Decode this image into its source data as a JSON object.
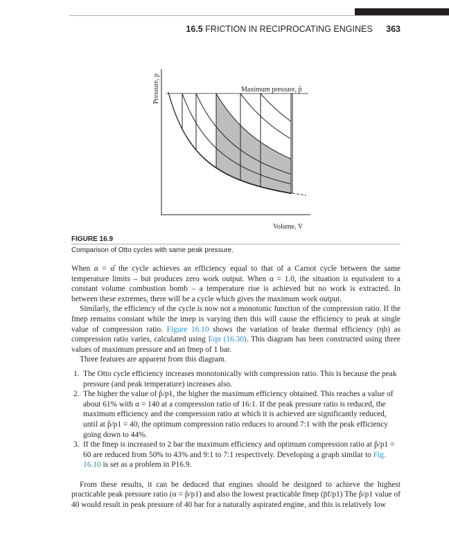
{
  "header": {
    "section_number": "16.5",
    "section_title": "FRICTION IN RECIPROCATING ENGINES",
    "page_number": "363"
  },
  "figure": {
    "label": "FIGURE 16.9",
    "caption": "Comparison of Otto cycles with same peak pressure.",
    "y_axis_label": "Pressure, p",
    "x_axis_label": "Volume, V",
    "max_pressure_label": "Maximum pressure, p̂",
    "shade_color": "#bdbdbd"
  },
  "body": {
    "p1": "When α = α̂ the cycle achieves an efficiency equal to that of a Carnot cycle between the same temperature limits – but produces zero work output. When α = 1.0, the situation is equivalent to a constant volume combustion bomb – a temperature rise is achieved but no work is extracted. In between these extremes, there will be a cycle which gives the maximum work output.",
    "p2a": "Similarly, the efficiency of the cycle is now not a monotonic function of the compression ratio. If the fmep remains constant while the imep is varying then this will cause the efficiency to peak at single value of compression ratio. ",
    "p2_link1": "Figure 16.10",
    "p2b": " shows the variation of brake thermal efficiency (ηb) as compression ratio varies, calculated using ",
    "p2_link2": "Eqn (16.30)",
    "p2c": ". This diagram has been constructed using three values of maximum pressure and an fmep of 1 bar.",
    "p3": "Three features are apparent from this diagram.",
    "list": [
      {
        "n": "1.",
        "text": "The Otto cycle efficiency increases monotonically with compression ratio. This is because the peak pressure (and peak temperature) increases also."
      },
      {
        "n": "2.",
        "text": "The higher the value of p̂/p1, the higher the maximum efficiency obtained. This reaches a value of about 61% with α = 140 at a compression ratio of 16:1. If the peak pressure ratio is reduced, the maximum efficiency and the compression ratio at which it is achieved are significantly reduced, until at p̂/p1 = 40, the optimum compression ratio reduces to around 7:1 with the peak efficiency going down to 44%."
      },
      {
        "n": "3.",
        "text_a": "If the fmep is increased to 2 bar the maximum efficiency and optimum compression ratio at p̂/p1 = 60 are reduced from 50% to 43% and 9:1 to 7:1 respectively. Developing a graph similar to ",
        "link": "Fig. 16.10",
        "text_b": " is set as a problem in P16.9."
      }
    ],
    "p4": "From these results, it can be deduced that engines should be designed to achieve the highest practicable peak pressure ratio (α = p̂/p1) and also the lowest practicable fmep (p̄f/p1) The p̂/p1 value of 40 would result in peak pressure of 40 bar for a naturally aspirated engine, and this is relatively low"
  }
}
